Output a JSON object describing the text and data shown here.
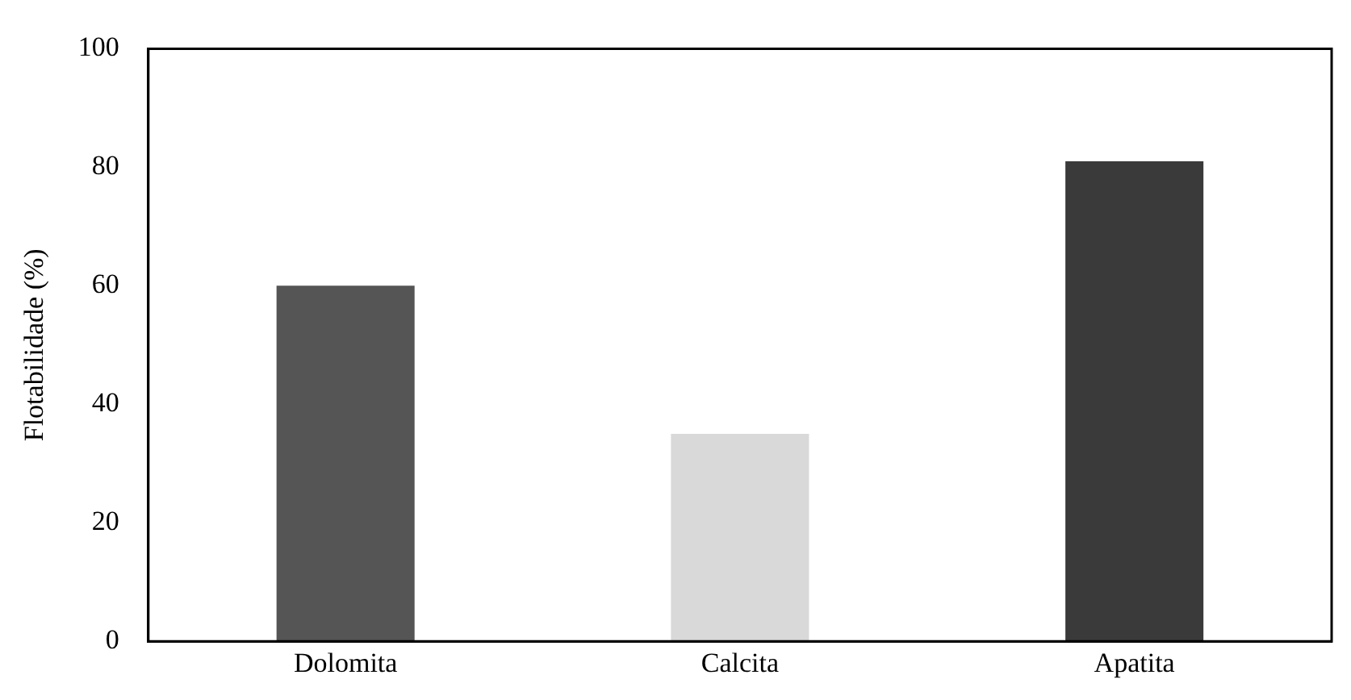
{
  "chart_data": {
    "type": "bar",
    "ylabel": "Flotabilidade (%)",
    "categories": [
      "Dolomita",
      "Calcita",
      "Apatita"
    ],
    "values": [
      60,
      35,
      81
    ],
    "colors": [
      "#555555",
      "#d9d9d9",
      "#3a3a3a"
    ],
    "ylim": [
      0,
      100
    ],
    "yticks": [
      0,
      20,
      40,
      60,
      80,
      100
    ],
    "grid": false,
    "legend": false
  }
}
